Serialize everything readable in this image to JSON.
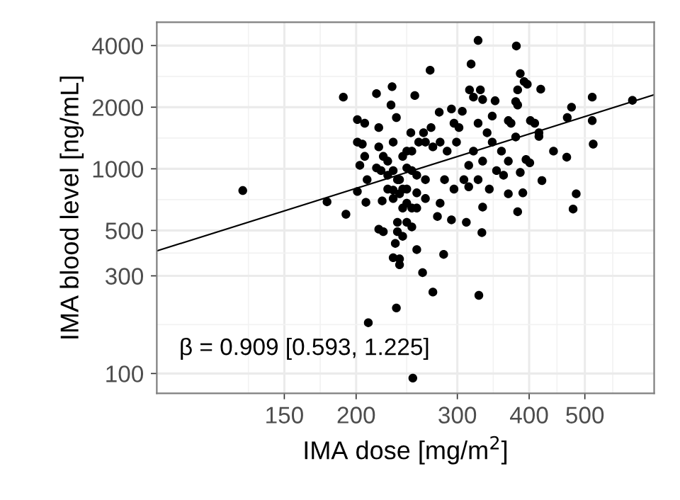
{
  "chart_data": {
    "type": "scatter",
    "xlabel": "IMA dose [mg/m$^{2}$]",
    "ylabel": "IMA blood level [ng/mL]",
    "log": "xy",
    "xlim": [
      90,
      660
    ],
    "ylim": [
      80,
      5200
    ],
    "xticks": [
      150,
      200,
      300,
      400,
      500
    ],
    "yticks": [
      100,
      300,
      500,
      1000,
      2000,
      4000
    ],
    "grid": true,
    "marker": "circle",
    "annotations": [
      "β = 0.909 [0.593, 1.225]"
    ],
    "series": [
      {
        "color": "#000000",
        "x": [
          127,
          326,
          380,
          317,
          269,
          386,
          392,
          397,
          231,
          217,
          190,
          253,
          230,
          419,
          382,
          379,
          382,
          315,
          320,
          329,
          332,
          349,
          345,
          306,
          474,
          515,
          605,
          466,
          515,
          517,
          201,
          235,
          279,
          293,
          249,
          264,
          372,
          368,
          402,
          416,
          416,
          441,
          465,
          421,
          483,
          477,
          178,
          192,
          208,
          201,
          222,
          232,
          238,
          250,
          264,
          280,
          293,
          311,
          314,
          331,
          332,
          341,
          368,
          382,
          390,
          368,
          361,
          358,
          345,
          314,
          308,
          285,
          288,
          272,
          257,
          245,
          227,
          217,
          209,
          203,
          207,
          201,
          205,
          219,
          221,
          232,
          241,
          245,
          236,
          234,
          241,
          219,
          223,
          232,
          238,
          238,
          255,
          284,
          261,
          272,
          327,
          235,
          210,
          251,
          277,
          236,
          250,
          264,
          255,
          280,
          299,
          320,
          332,
          351,
          326,
          338,
          302,
          296,
          270,
          262,
          379,
          395,
          409,
          401,
          386,
          326,
          296,
          250,
          227,
          245,
          255,
          241,
          232,
          223,
          207,
          219,
          236,
          241,
          232,
          245,
          250,
          227,
          238,
          245,
          255
        ],
        "values": [
          783,
          4240,
          3980,
          3250,
          3030,
          2920,
          2670,
          2590,
          2520,
          2330,
          2240,
          2280,
          2050,
          2450,
          2430,
          2130,
          2050,
          2430,
          2240,
          2430,
          2180,
          2150,
          1810,
          1910,
          2000,
          2240,
          2160,
          1780,
          1720,
          1320,
          1740,
          1780,
          1890,
          1960,
          1500,
          1350,
          1670,
          1720,
          1720,
          1500,
          1440,
          1220,
          1140,
          876,
          755,
          636,
          690,
          600,
          686,
          775,
          697,
          787,
          885,
          980,
          716,
          679,
          563,
          548,
          817,
          488,
          650,
          796,
          755,
          617,
          763,
          1090,
          930,
          1220,
          1350,
          1040,
          885,
          885,
          1220,
          1280,
          1350,
          1220,
          1090,
          1010,
          885,
          1040,
          1150,
          1350,
          1320,
          1280,
          980,
          980,
          643,
          548,
          493,
          432,
          468,
          507,
          493,
          368,
          363,
          340,
          403,
          382,
          311,
          250,
          241,
          209,
          177,
          95,
          585,
          548,
          520,
          885,
          763,
          1350,
          1350,
          1220,
          1090,
          980,
          1670,
          1500,
          1590,
          1670,
          1590,
          1500,
          1430,
          1110,
          1670,
          1070,
          960,
          885,
          796,
          643,
          796,
          796,
          930,
          1150,
          1350,
          1150,
          1670,
          1590,
          885,
          796,
          716,
          1010,
          1220,
          930,
          755,
          679,
          643
        ]
      },
      {
        "type": "line",
        "color": "#000000",
        "marker": "none",
        "x": [
          90,
          660
        ],
        "values": [
          397,
          2300
        ]
      }
    ]
  }
}
